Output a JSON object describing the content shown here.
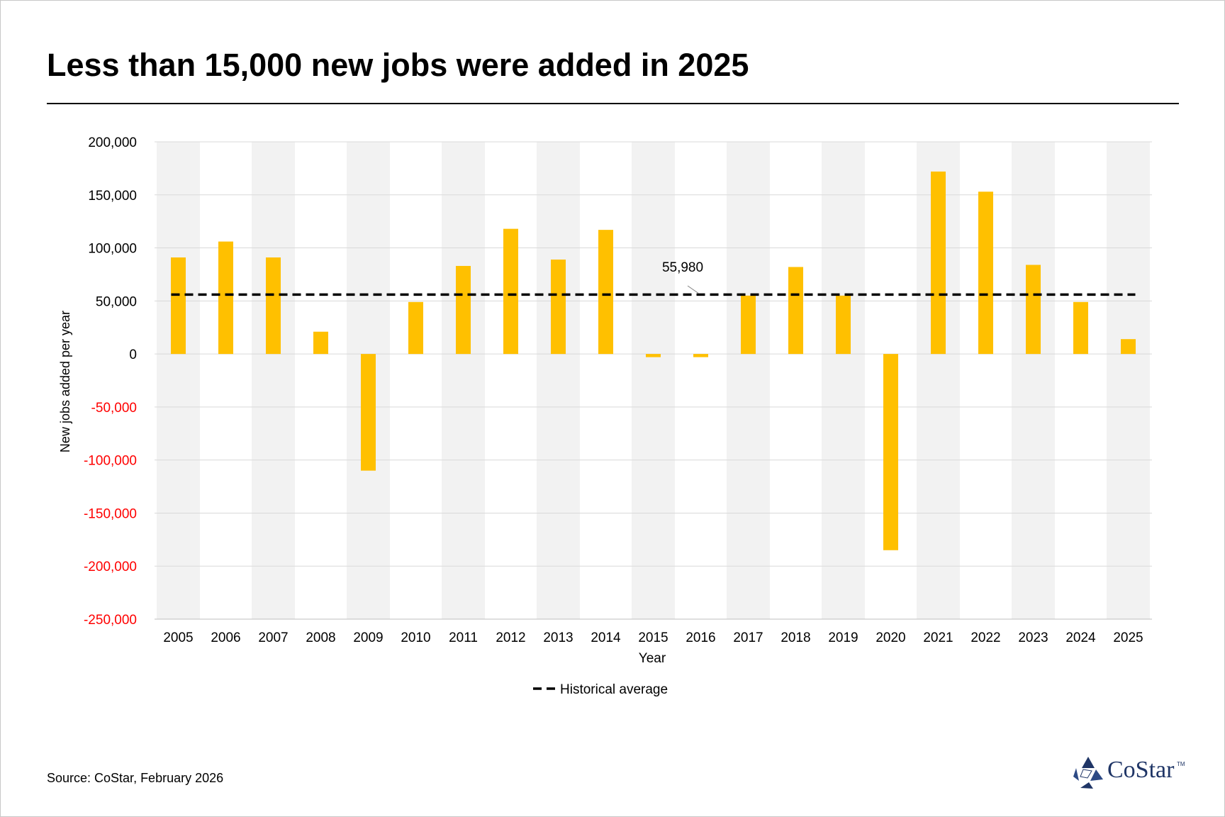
{
  "title": "Less than 15,000 new jobs were added in 2025",
  "source": "Source: CoStar, February 2026",
  "logo": {
    "text": "CoStar",
    "tm": "TM",
    "icon": "costar-star-icon",
    "color": "#1f3566"
  },
  "colors": {
    "bar": "#FFC000",
    "band": "#F2F2F2",
    "grid": "#D9D9D9",
    "negative_tick": "#FF0000",
    "average_line": "#000000"
  },
  "chart_data": {
    "type": "bar",
    "title": "Less than 15,000 new jobs were added in 2025",
    "xlabel": "Year",
    "ylabel": "New jobs added per year",
    "ylim": [
      -250000,
      200000
    ],
    "y_ticks": [
      200000,
      150000,
      100000,
      50000,
      0,
      -50000,
      -100000,
      -150000,
      -200000,
      -250000
    ],
    "y_tick_labels": [
      "200,000",
      "150,000",
      "100,000",
      "50,000",
      "0",
      "-50,000",
      "-100,000",
      "-150,000",
      "-200,000",
      "-250,000"
    ],
    "categories": [
      "2005",
      "2006",
      "2007",
      "2008",
      "2009",
      "2010",
      "2011",
      "2012",
      "2013",
      "2014",
      "2015",
      "2016",
      "2017",
      "2018",
      "2019",
      "2020",
      "2021",
      "2022",
      "2023",
      "2024",
      "2025"
    ],
    "series": [
      {
        "name": "New jobs added",
        "values": [
          91000,
          106000,
          91000,
          21000,
          -110000,
          49000,
          83000,
          118000,
          89000,
          117000,
          -3000,
          -3000,
          55000,
          82000,
          55000,
          -185000,
          172000,
          153000,
          84000,
          49000,
          14000
        ]
      },
      {
        "name": "Historical average",
        "type": "line",
        "style": "dashed",
        "value": 55980
      }
    ],
    "annotations": [
      {
        "text": "55,980",
        "target": "Historical average"
      }
    ],
    "legend": {
      "position": "bottom",
      "entries": [
        "Historical average"
      ]
    },
    "grid": true
  }
}
